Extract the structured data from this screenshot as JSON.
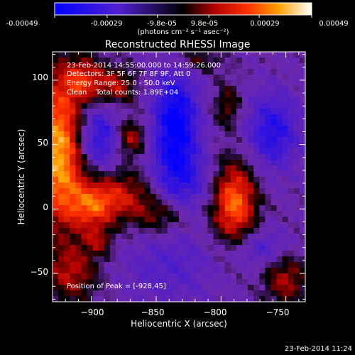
{
  "colorbar": {
    "ticks": [
      "-0.00049",
      "-0.00029",
      "-9.8e-05",
      "9.8e-05",
      "0.00029",
      "0.00049"
    ],
    "units": "(photons cm⁻² s⁻¹ asec⁻²)",
    "range": [
      -0.00049,
      0.00049
    ]
  },
  "chart_data": {
    "type": "heatmap",
    "title": "Reconstructed RHESSI Image",
    "xlabel": "Heliocentric X (arcsec)",
    "ylabel": "Heliocentric Y (arcsec)",
    "xlim": [
      -930,
      -735
    ],
    "ylim": [
      -72,
      122
    ],
    "xticks": [
      -900,
      -850,
      -800,
      -750
    ],
    "xtick_labels": [
      "−900",
      "−850",
      "−800",
      "−750"
    ],
    "yticks": [
      -50,
      0,
      50,
      100
    ],
    "ytick_labels": [
      "−50",
      "0",
      "50",
      "100"
    ],
    "annotations": [
      "23-Feb-2014 14:55:00.000 to 14:59:26.000",
      "Detectors: 3F 5F 6F 7F 8F 9F, Att 0",
      "Energy Range: 25.0 - 50.0 keV",
      "Clean    Total counts: 1.89E+04"
    ],
    "peak_label": "Position of Peak = [-928,45]",
    "peak_position": [
      -928,
      45
    ],
    "sources": [
      {
        "x": -925,
        "y": 45,
        "amp": 1.0,
        "sx": 14,
        "sy": 40
      },
      {
        "x": -905,
        "y": 100,
        "amp": 0.55,
        "sx": 12,
        "sy": 12
      },
      {
        "x": -880,
        "y": 95,
        "amp": 0.45,
        "sx": 10,
        "sy": 10
      },
      {
        "x": -870,
        "y": 55,
        "amp": 0.5,
        "sx": 8,
        "sy": 10
      },
      {
        "x": -880,
        "y": 10,
        "amp": 0.55,
        "sx": 22,
        "sy": 14
      },
      {
        "x": -900,
        "y": 0,
        "amp": 0.45,
        "sx": 12,
        "sy": 12
      },
      {
        "x": -845,
        "y": -5,
        "amp": 0.35,
        "sx": 14,
        "sy": 10
      },
      {
        "x": -790,
        "y": 5,
        "amp": 0.85,
        "sx": 12,
        "sy": 22
      },
      {
        "x": -795,
        "y": 80,
        "amp": 0.35,
        "sx": 7,
        "sy": 12
      },
      {
        "x": -820,
        "y": 115,
        "amp": 0.3,
        "sx": 14,
        "sy": 7
      },
      {
        "x": -750,
        "y": -55,
        "amp": 0.45,
        "sx": 12,
        "sy": 14
      },
      {
        "x": -915,
        "y": -50,
        "amp": 0.45,
        "sx": 14,
        "sy": 16
      },
      {
        "x": -895,
        "y": -25,
        "amp": 0.35,
        "sx": 8,
        "sy": 8
      },
      {
        "x": -840,
        "y": -45,
        "amp": -0.25,
        "sx": 25,
        "sy": 20
      },
      {
        "x": -835,
        "y": 65,
        "amp": -0.8,
        "sx": 12,
        "sy": 30
      },
      {
        "x": -895,
        "y": 55,
        "amp": -0.55,
        "sx": 12,
        "sy": 18
      },
      {
        "x": -760,
        "y": 60,
        "amp": -0.55,
        "sx": 14,
        "sy": 20
      },
      {
        "x": -830,
        "y": 20,
        "amp": -0.35,
        "sx": 18,
        "sy": 18
      },
      {
        "x": -770,
        "y": -30,
        "amp": -0.3,
        "sx": 16,
        "sy": 10
      }
    ],
    "grid": false
  },
  "timestamp": "23-Feb-2014 11:24"
}
